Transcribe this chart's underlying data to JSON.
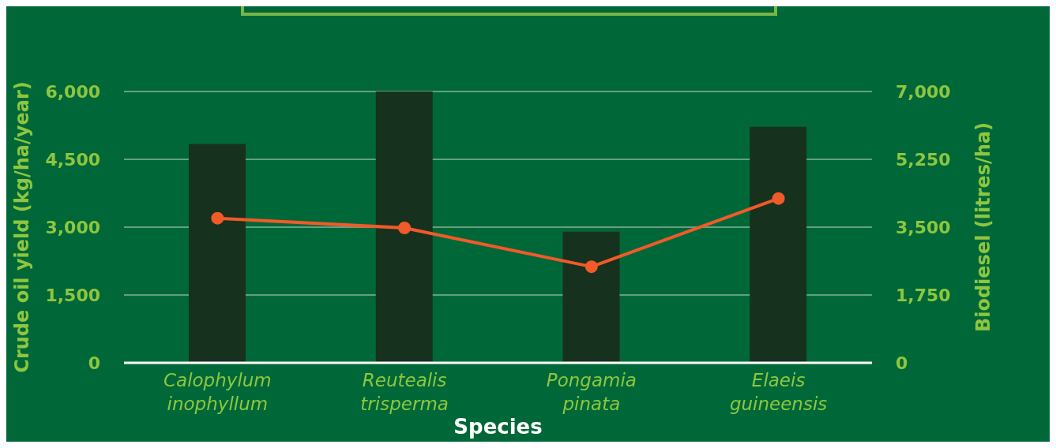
{
  "chart_data": {
    "type": "bar",
    "xlabel": "Species",
    "ylabel": "Crude oil yield (kg/ha/year)",
    "y2label": "Biodiesel (litres/ha)",
    "categories": [
      "Calophylum inophyllum",
      "Reutealis trisperma",
      "Pongamia pinata",
      "Elaeis guineensis"
    ],
    "series": [
      {
        "color": "#16311e",
        "values": [
          4840,
          6000,
          2900,
          5220
        ]
      },
      {
        "type": "line",
        "axis": "y2",
        "color": "#f15a29",
        "values": [
          3730,
          3480,
          2480,
          4240
        ]
      }
    ],
    "ylim": [
      0,
      6000
    ],
    "yticks": [
      {
        "value": 0,
        "label": "0"
      },
      {
        "value": 1500,
        "label": "1,500"
      },
      {
        "value": 3000,
        "label": "3,000"
      },
      {
        "value": 4500,
        "label": "4,500"
      },
      {
        "value": 6000,
        "label": "6,000"
      }
    ],
    "y2lim": [
      0,
      7000
    ],
    "y2ticks": [
      {
        "value": 0,
        "label": "0"
      },
      {
        "value": 1750,
        "label": "1,750"
      },
      {
        "value": 3500,
        "label": "3,500"
      },
      {
        "value": 5250,
        "label": "5,250"
      },
      {
        "value": 7000,
        "label": "7,000"
      }
    ],
    "grid": "y",
    "marker": "circle",
    "line_style": "solid"
  }
}
